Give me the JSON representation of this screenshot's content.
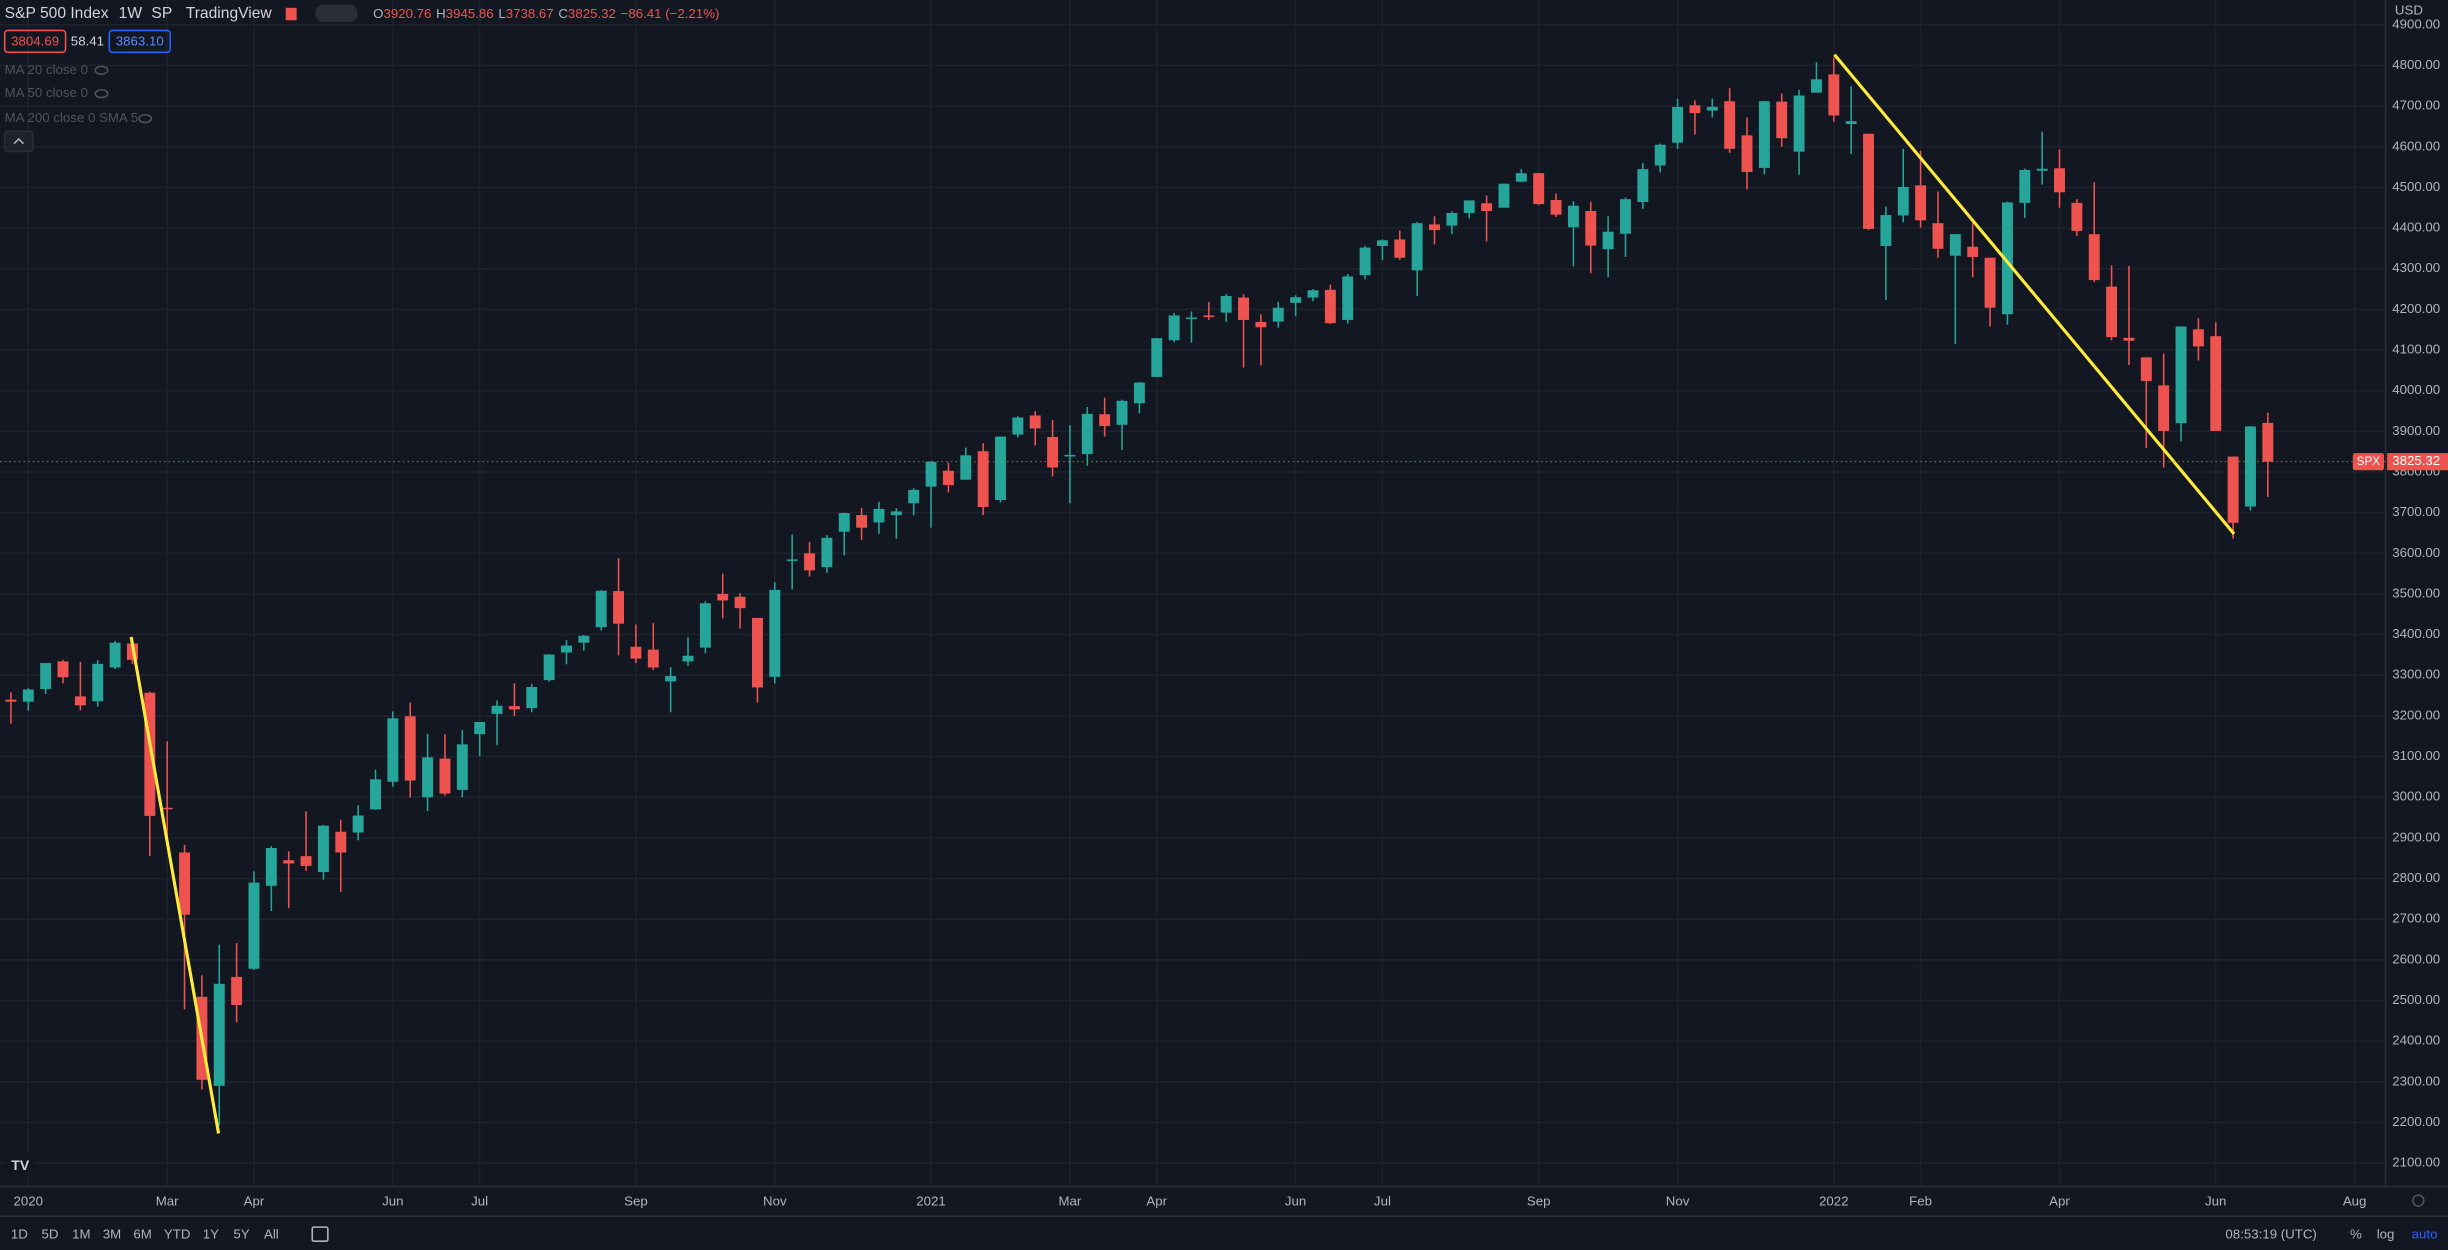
{
  "header": {
    "symbol": "S&P 500 Index",
    "interval": "1W",
    "exchange": "SP",
    "source": "TradingView",
    "ohlc_keys": [
      "O",
      "H",
      "L",
      "C"
    ],
    "change": "−86.41 (−2.21%)",
    "bid": "3804.69",
    "spread": "58.41",
    "ask": "3863.10"
  },
  "indicators": [
    "MA 20 close 0",
    "MA 50 close 0",
    "MA 200 close 0 SMA 5"
  ],
  "currency": "USD",
  "toolbar": {
    "ranges": [
      "1D",
      "5D",
      "1M",
      "3M",
      "6M",
      "YTD",
      "1Y",
      "5Y",
      "All"
    ],
    "time": "08:53:19 (UTC)",
    "percent": "%",
    "log": "log",
    "auto": "auto"
  },
  "chart_data": {
    "type": "candlestick",
    "up_color": "#26a69a",
    "down_color": "#ef5350",
    "grid": true,
    "price_label": "SPX",
    "categories": [
      null,
      "2020",
      null,
      null,
      null,
      null,
      null,
      null,
      null,
      "Mar",
      null,
      null,
      null,
      null,
      "Apr",
      null,
      null,
      null,
      null,
      null,
      null,
      null,
      "Jun",
      null,
      null,
      null,
      null,
      "Jul",
      null,
      null,
      null,
      null,
      null,
      null,
      null,
      null,
      "Sep",
      null,
      null,
      null,
      null,
      null,
      null,
      null,
      "Nov",
      null,
      null,
      null,
      null,
      null,
      null,
      null,
      null,
      "2021",
      null,
      null,
      null,
      null,
      null,
      null,
      null,
      "Mar",
      null,
      null,
      null,
      null,
      "Apr",
      null,
      null,
      null,
      null,
      null,
      null,
      null,
      "Jun",
      null,
      null,
      null,
      null,
      "Jul",
      null,
      null,
      null,
      null,
      null,
      null,
      null,
      null,
      "Sep",
      null,
      null,
      null,
      null,
      null,
      null,
      null,
      "Nov",
      null,
      null,
      null,
      null,
      null,
      null,
      null,
      null,
      "2022",
      null,
      null,
      null,
      null,
      "Feb",
      null,
      null,
      null,
      null,
      null,
      null,
      null,
      "Apr",
      null,
      null,
      null,
      null,
      null,
      null,
      null,
      null,
      "Jun",
      null,
      null,
      null,
      null,
      null,
      null,
      null,
      "Aug",
      null
    ],
    "open": [
      3240,
      3235,
      3266,
      3334,
      3248,
      3236,
      3319,
      3378,
      3257,
      2974,
      2864,
      2509,
      2290,
      2558,
      2578,
      2782,
      2845,
      2855,
      2816,
      2915,
      2913,
      2970,
      3038,
      3199,
      3000,
      3095,
      3018,
      3155,
      3205,
      3224,
      3219,
      3288,
      3356,
      3380,
      3418,
      3507,
      3370,
      3363,
      3285,
      3334,
      3368,
      3500,
      3493,
      3441,
      3296,
      3583,
      3600,
      3566,
      3653,
      3694,
      3676,
      3694,
      3723,
      3764,
      3803,
      3781,
      3851,
      3731,
      3892,
      3939,
      3886,
      3842,
      3844,
      3942,
      3916,
      3969,
      4034,
      4124,
      4179,
      4185,
      4192,
      4229,
      4169,
      4170,
      4216,
      4229,
      4248,
      4174,
      4284,
      4356,
      4372,
      4296,
      4409,
      4406,
      4437,
      4461,
      4450,
      4514,
      4535,
      4469,
      4402,
      4442,
      4348,
      4386,
      4464,
      4554,
      4610,
      4702,
      4689,
      4712,
      4628,
      4548,
      4711,
      4588,
      4733,
      4778,
      4656,
      4632,
      4356,
      4431,
      4505,
      4412,
      4332,
      4354,
      4327,
      4188,
      4462,
      4541,
      4547,
      4462,
      4385,
      4256,
      4130,
      4082,
      4013,
      3920,
      4151,
      4134,
      3838,
      3715,
      3920.76,
      null,
      null,
      null,
      null,
      null,
      null
    ],
    "high": [
      3258,
      3268,
      3330,
      3338,
      3333,
      3337,
      3385,
      3393,
      3260,
      3137,
      2883,
      2562,
      2637,
      2641,
      2818,
      2880,
      2867,
      2965,
      2932,
      2945,
      2980,
      3068,
      3211,
      3233,
      3156,
      3155,
      3165,
      3185,
      3238,
      3280,
      3279,
      3352,
      3387,
      3399,
      3509,
      3588,
      3425,
      3429,
      3320,
      3393,
      3482,
      3550,
      3502,
      3441,
      3529,
      3646,
      3628,
      3645,
      3700,
      3712,
      3727,
      3711,
      3760,
      3827,
      3823,
      3860,
      3871,
      3887,
      3937,
      3950,
      3928,
      3915,
      3960,
      3983,
      3978,
      4021,
      4130,
      4191,
      4195,
      4218,
      4238,
      4237,
      4188,
      4219,
      4235,
      4250,
      4261,
      4287,
      4356,
      4372,
      4394,
      4415,
      4429,
      4441,
      4468,
      4480,
      4510,
      4545,
      4536,
      4485,
      4466,
      4465,
      4429,
      4475,
      4560,
      4608,
      4718,
      4714,
      4718,
      4744,
      4672,
      4713,
      4731,
      4740,
      4808,
      4819,
      4749,
      4632,
      4453,
      4595,
      4590,
      4490,
      4385,
      4416,
      4327,
      4465,
      4546,
      4637,
      4594,
      4471,
      4513,
      4308,
      4307,
      4082,
      4091,
      4158,
      4178,
      4168,
      3838,
      3913,
      3945.86,
      null,
      null,
      null,
      null,
      null,
      null
    ],
    "low": [
      3181,
      3213,
      3254,
      3280,
      3214,
      3223,
      3315,
      3328,
      2855,
      2901,
      2478,
      2281,
      2192,
      2446,
      2575,
      2720,
      2727,
      2819,
      2797,
      2767,
      2894,
      2969,
      3026,
      2999,
      2966,
      3004,
      3000,
      3101,
      3128,
      3200,
      3209,
      3284,
      3327,
      3360,
      3410,
      3349,
      3330,
      3313,
      3209,
      3323,
      3354,
      3440,
      3415,
      3233,
      3280,
      3511,
      3543,
      3552,
      3595,
      3633,
      3648,
      3636,
      3694,
      3663,
      3750,
      3781,
      3694,
      3725,
      3885,
      3865,
      3789,
      3723,
      3815,
      3887,
      3854,
      3944,
      4034,
      4119,
      4118,
      4174,
      4169,
      4057,
      4062,
      4155,
      4183,
      4220,
      4164,
      4165,
      4274,
      4321,
      4322,
      4233,
      4360,
      4385,
      4424,
      4367,
      4450,
      4513,
      4457,
      4427,
      4306,
      4289,
      4279,
      4329,
      4447,
      4537,
      4595,
      4630,
      4672,
      4585,
      4495,
      4532,
      4600,
      4531,
      4733,
      4662,
      4582,
      4395,
      4223,
      4414,
      4401,
      4327,
      4115,
      4279,
      4158,
      4162,
      4425,
      4507,
      4450,
      4381,
      4267,
      4124,
      4063,
      3859,
      3811,
      3875,
      4074,
      3901,
      3636,
      3705,
      3738.67,
      null,
      null,
      null,
      null,
      null,
      null
    ],
    "close": [
      3235,
      3265,
      3330,
      3295,
      3226,
      3328,
      3380,
      3338,
      2954,
      2972,
      2711,
      2305,
      2541,
      2489,
      2790,
      2875,
      2837,
      2831,
      2930,
      2864,
      2955,
      3044,
      3194,
      3041,
      3098,
      3009,
      3130,
      3185,
      3225,
      3216,
      3271,
      3351,
      3373,
      3397,
      3508,
      3427,
      3341,
      3319,
      3298,
      3348,
      3477,
      3484,
      3465,
      3270,
      3510,
      3585,
      3558,
      3638,
      3699,
      3663,
      3709,
      3703,
      3756,
      3825,
      3768,
      3841,
      3714,
      3887,
      3934,
      3907,
      3811,
      3842,
      3943,
      3913,
      3975,
      4020,
      4129,
      4185,
      4180,
      4181,
      4233,
      4174,
      4156,
      4204,
      4230,
      4247,
      4166,
      4281,
      4352,
      4370,
      4327,
      4412,
      4395,
      4437,
      4468,
      4442,
      4509,
      4535,
      4459,
      4433,
      4455,
      4357,
      4391,
      4471,
      4545,
      4605,
      4698,
      4683,
      4698,
      4595,
      4538,
      4712,
      4621,
      4726,
      4766,
      4677,
      4663,
      4398,
      4432,
      4501,
      4419,
      4349,
      4385,
      4329,
      4204,
      4463,
      4543,
      4546,
      4488,
      4393,
      4272,
      4132,
      4123,
      4024,
      3901,
      4158,
      4109,
      3901,
      3675,
      3912,
      3825.32,
      null,
      null,
      null,
      null,
      null,
      null
    ],
    "ylim": [
      2050,
      4961
    ],
    "yticks": [
      {
        "value": 2100,
        "label": "2100.00"
      },
      {
        "value": 2200,
        "label": "2200.00"
      },
      {
        "value": 2300,
        "label": "2300.00"
      },
      {
        "value": 2400,
        "label": "2400.00"
      },
      {
        "value": 2500,
        "label": "2500.00"
      },
      {
        "value": 2600,
        "label": "2600.00"
      },
      {
        "value": 2700,
        "label": "2700.00"
      },
      {
        "value": 2800,
        "label": "2800.00"
      },
      {
        "value": 2900,
        "label": "2900.00"
      },
      {
        "value": 3000,
        "label": "3000.00"
      },
      {
        "value": 3100,
        "label": "3100.00"
      },
      {
        "value": 3200,
        "label": "3200.00"
      },
      {
        "value": 3300,
        "label": "3300.00"
      },
      {
        "value": 3400,
        "label": "3400.00"
      },
      {
        "value": 3500,
        "label": "3500.00"
      },
      {
        "value": 3600,
        "label": "3600.00"
      },
      {
        "value": 3700,
        "label": "3700.00"
      },
      {
        "value": 3800,
        "label": "3800.00"
      },
      {
        "value": 3900,
        "label": "3900.00"
      },
      {
        "value": 4000,
        "label": "4000.00"
      },
      {
        "value": 4100,
        "label": "4100.00"
      },
      {
        "value": 4200,
        "label": "4200.00"
      },
      {
        "value": 4300,
        "label": "4300.00"
      },
      {
        "value": 4400,
        "label": "4400.00"
      },
      {
        "value": 4500,
        "label": "4500.00"
      },
      {
        "value": 4600,
        "label": "4600.00"
      },
      {
        "value": 4700,
        "label": "4700.00"
      },
      {
        "value": 4800,
        "label": "4800.00"
      },
      {
        "value": 4900,
        "label": "4900.00"
      }
    ]
  }
}
